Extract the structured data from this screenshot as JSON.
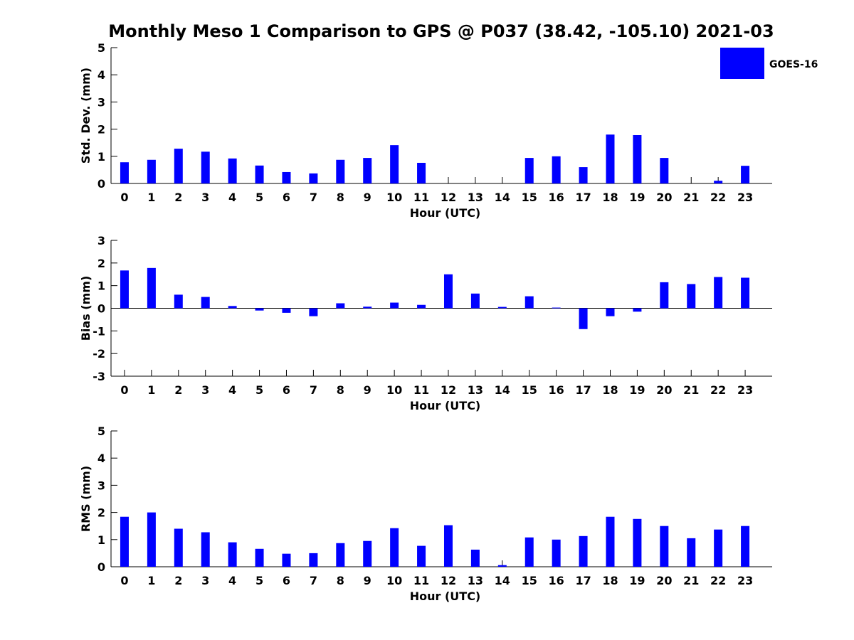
{
  "title": "Monthly Meso 1 Comparison to GPS @ P037 (38.42, -105.10) 2021-03",
  "colors": {
    "bar": "#0000ff",
    "axis": "#000000"
  },
  "legend": {
    "label": "GOES-16",
    "placement": "top-right"
  },
  "chart_data": [
    {
      "type": "bar",
      "name": "std-dev",
      "categories": [
        "0",
        "1",
        "2",
        "3",
        "4",
        "5",
        "6",
        "7",
        "8",
        "9",
        "10",
        "11",
        "12",
        "13",
        "14",
        "15",
        "16",
        "17",
        "18",
        "19",
        "20",
        "21",
        "22",
        "23"
      ],
      "series": [
        {
          "name": "GOES-16",
          "values": [
            0.78,
            0.87,
            1.28,
            1.17,
            0.92,
            0.66,
            0.42,
            0.37,
            0.87,
            0.94,
            1.41,
            0.76,
            null,
            null,
            null,
            0.94,
            1.0,
            0.6,
            1.8,
            1.78,
            0.94,
            null,
            0.1,
            0.65
          ]
        }
      ],
      "xlabel": "Hour (UTC)",
      "ylabel": "Std. Dev. (mm)",
      "ylim": [
        0,
        5
      ],
      "yticks": [
        0,
        1,
        2,
        3,
        4,
        5
      ]
    },
    {
      "type": "bar",
      "name": "bias",
      "categories": [
        "0",
        "1",
        "2",
        "3",
        "4",
        "5",
        "6",
        "7",
        "8",
        "9",
        "10",
        "11",
        "12",
        "13",
        "14",
        "15",
        "16",
        "17",
        "18",
        "19",
        "20",
        "21",
        "22",
        "23"
      ],
      "series": [
        {
          "name": "GOES-16",
          "values": [
            1.67,
            1.78,
            0.6,
            0.5,
            0.1,
            -0.1,
            -0.2,
            -0.35,
            0.22,
            0.07,
            0.25,
            0.15,
            1.5,
            0.65,
            0.06,
            0.53,
            0.03,
            -0.92,
            -0.35,
            -0.15,
            1.15,
            1.07,
            1.38,
            1.35
          ]
        }
      ],
      "xlabel": "Hour (UTC)",
      "ylabel": "Bias (mm)",
      "ylim": [
        -3,
        3
      ],
      "yticks": [
        -3,
        -2,
        -1,
        0,
        1,
        2,
        3
      ],
      "zero_line": true
    },
    {
      "type": "bar",
      "name": "rms",
      "categories": [
        "0",
        "1",
        "2",
        "3",
        "4",
        "5",
        "6",
        "7",
        "8",
        "9",
        "10",
        "11",
        "12",
        "13",
        "14",
        "15",
        "16",
        "17",
        "18",
        "19",
        "20",
        "21",
        "22",
        "23"
      ],
      "series": [
        {
          "name": "GOES-16",
          "values": [
            1.84,
            2.0,
            1.4,
            1.27,
            0.9,
            0.66,
            0.48,
            0.5,
            0.87,
            0.95,
            1.42,
            0.77,
            1.53,
            0.63,
            0.06,
            1.08,
            1.0,
            1.13,
            1.84,
            1.76,
            1.5,
            1.05,
            1.37,
            1.5
          ]
        }
      ],
      "xlabel": "Hour (UTC)",
      "ylabel": "RMS (mm)",
      "ylim": [
        0,
        5
      ],
      "yticks": [
        0,
        1,
        2,
        3,
        4,
        5
      ]
    }
  ]
}
